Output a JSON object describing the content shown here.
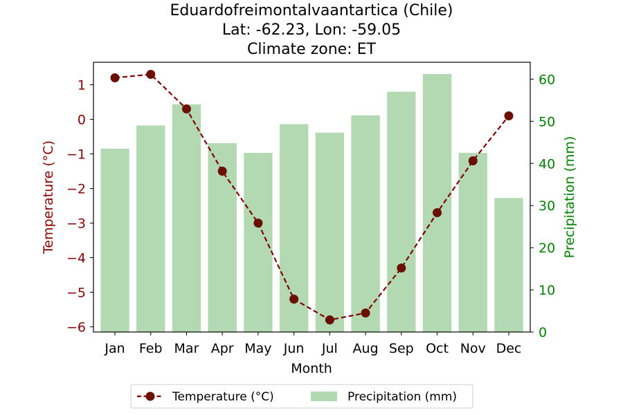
{
  "chart_data": {
    "type": "bar+line",
    "title_lines": [
      "Eduardofreimontalvaantartica (Chile)",
      "Lat: -62.23, Lon: -59.05",
      "Climate zone: ET"
    ],
    "xlabel": "Month",
    "ylabel_left": "Temperature (°C)",
    "ylabel_right": "Precipitation (mm)",
    "categories": [
      "Jan",
      "Feb",
      "Mar",
      "Apr",
      "May",
      "Jun",
      "Jul",
      "Aug",
      "Sep",
      "Oct",
      "Nov",
      "Dec"
    ],
    "series": [
      {
        "name": "Temperature (°C)",
        "kind": "line",
        "axis": "left",
        "color": "#800000",
        "line_style": "dashed",
        "marker": "circle",
        "values": [
          1.2,
          1.3,
          0.3,
          -1.5,
          -3.0,
          -5.2,
          -5.8,
          -5.6,
          -4.3,
          -2.7,
          -1.2,
          0.1
        ]
      },
      {
        "name": "Precipitation (mm)",
        "kind": "bar",
        "axis": "right",
        "color": "#b2d9b2",
        "values": [
          43.5,
          49.0,
          54.0,
          44.8,
          42.5,
          49.3,
          47.3,
          51.4,
          57.0,
          61.2,
          42.5,
          31.8
        ]
      }
    ],
    "ylim_left": [
      -6.15,
      1.65
    ],
    "yticks_left": [
      1,
      0,
      -1,
      -2,
      -3,
      -4,
      -5,
      -6
    ],
    "yticks_left_labels": [
      "1",
      "0",
      "−1",
      "−2",
      "−3",
      "−4",
      "−5",
      "−6"
    ],
    "ylim_right": [
      0,
      64
    ],
    "yticks_right": [
      0,
      10,
      20,
      30,
      40,
      50,
      60
    ],
    "yticks_right_labels": [
      "0",
      "10",
      "20",
      "30",
      "40",
      "50",
      "60"
    ],
    "left_axis_color": "#8b0000",
    "right_axis_color": "#008000",
    "legend_placement": "bottom-center",
    "grid": false
  }
}
